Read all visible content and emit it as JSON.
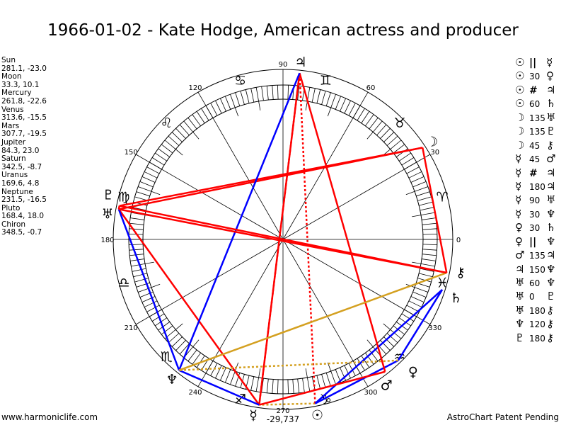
{
  "title": "1966-01-02 - Kate Hodge, American actress and producer",
  "planets": [
    {
      "name": "Sun",
      "glyph": "☉",
      "coords": "281.1, -23.0",
      "lon": 281.1
    },
    {
      "name": "Moon",
      "glyph": "☽",
      "coords": "33.3, 10.1",
      "lon": 33.3
    },
    {
      "name": "Mercury",
      "glyph": "☿",
      "coords": "261.8, -22.6",
      "lon": 261.8
    },
    {
      "name": "Venus",
      "glyph": "♀",
      "coords": "313.6, -15.5",
      "lon": 313.6
    },
    {
      "name": "Mars",
      "glyph": "♂",
      "coords": "307.7, -19.5",
      "lon": 307.7
    },
    {
      "name": "Jupiter",
      "glyph": "♃",
      "coords": "84.3, 23.0",
      "lon": 84.3
    },
    {
      "name": "Saturn",
      "glyph": "♄",
      "coords": "342.5, -8.7",
      "lon": 342.5
    },
    {
      "name": "Uranus",
      "glyph": "♅",
      "coords": "169.6, 4.8",
      "lon": 169.6
    },
    {
      "name": "Neptune",
      "glyph": "♆",
      "coords": "231.5, -16.5",
      "lon": 231.5
    },
    {
      "name": "Pluto",
      "glyph": "♇",
      "coords": "168.4, 18.0",
      "lon": 168.4
    },
    {
      "name": "Chiron",
      "glyph": "⚷",
      "coords": "348.5, -0.7",
      "lon": 348.5
    }
  ],
  "aspects": [
    {
      "p1": "Sun",
      "g1": "☉",
      "aspect": "||",
      "g2": "☿",
      "p2": "Mercury"
    },
    {
      "p1": "Sun",
      "g1": "☉",
      "aspect": "30",
      "g2": "♀",
      "p2": "Venus"
    },
    {
      "p1": "Sun",
      "g1": "☉",
      "aspect": "#",
      "g2": "♃",
      "p2": "Jupiter"
    },
    {
      "p1": "Sun",
      "g1": "☉",
      "aspect": "60",
      "g2": "♄",
      "p2": "Saturn"
    },
    {
      "p1": "Moon",
      "g1": "☽",
      "aspect": "135",
      "g2": "♅",
      "p2": "Uranus"
    },
    {
      "p1": "Moon",
      "g1": "☽",
      "aspect": "135",
      "g2": "♇",
      "p2": "Pluto"
    },
    {
      "p1": "Moon",
      "g1": "☽",
      "aspect": "45",
      "g2": "⚷",
      "p2": "Chiron"
    },
    {
      "p1": "Mercury",
      "g1": "☿",
      "aspect": "45",
      "g2": "♂",
      "p2": "Mars"
    },
    {
      "p1": "Mercury",
      "g1": "☿",
      "aspect": "#",
      "g2": "♃",
      "p2": "Jupiter"
    },
    {
      "p1": "Mercury",
      "g1": "☿",
      "aspect": "180",
      "g2": "♃",
      "p2": "Jupiter"
    },
    {
      "p1": "Mercury",
      "g1": "☿",
      "aspect": "90",
      "g2": "♅",
      "p2": "Uranus"
    },
    {
      "p1": "Mercury",
      "g1": "☿",
      "aspect": "30",
      "g2": "♆",
      "p2": "Neptune"
    },
    {
      "p1": "Venus",
      "g1": "♀",
      "aspect": "30",
      "g2": "♄",
      "p2": "Saturn"
    },
    {
      "p1": "Venus",
      "g1": "♀",
      "aspect": "||",
      "g2": "♆",
      "p2": "Neptune"
    },
    {
      "p1": "Mars",
      "g1": "♂",
      "aspect": "135",
      "g2": "♃",
      "p2": "Jupiter"
    },
    {
      "p1": "Jupiter",
      "g1": "♃",
      "aspect": "150",
      "g2": "♆",
      "p2": "Neptune"
    },
    {
      "p1": "Uranus",
      "g1": "♅",
      "aspect": "60",
      "g2": "♆",
      "p2": "Neptune"
    },
    {
      "p1": "Uranus",
      "g1": "♅",
      "aspect": "0",
      "g2": "♇",
      "p2": "Pluto"
    },
    {
      "p1": "Uranus",
      "g1": "♅",
      "aspect": "180",
      "g2": "⚷",
      "p2": "Chiron"
    },
    {
      "p1": "Neptune",
      "g1": "♆",
      "aspect": "120",
      "g2": "⚷",
      "p2": "Chiron"
    },
    {
      "p1": "Pluto",
      "g1": "♇",
      "aspect": "180",
      "g2": "⚷",
      "p2": "Chiron"
    }
  ],
  "signs": [
    "♈",
    "♉",
    "♊",
    "♋",
    "♌",
    "♍",
    "♎",
    "♏",
    "♐",
    "♑",
    "♒",
    "♓"
  ],
  "degree_labels": [
    "0",
    "30",
    "60",
    "90",
    "120",
    "150",
    "180",
    "210",
    "240",
    "270",
    "300",
    "330"
  ],
  "bottom_value": "-29,737",
  "footer_left": "www.harmoniclife.com",
  "footer_right": "AstroChart Patent Pending",
  "colors": {
    "hard": "#ff0000",
    "soft": "#0000ff",
    "trine": "#d4a020",
    "line": "#000000"
  }
}
